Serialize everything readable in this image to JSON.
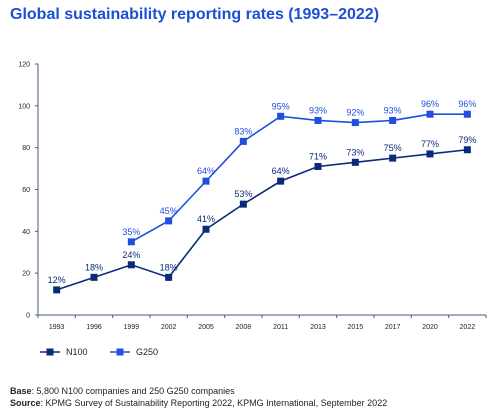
{
  "title": "Global sustainability reporting rates (1993–2022)",
  "chart_data": {
    "type": "line",
    "x": [
      "1993",
      "1996",
      "1999",
      "2002",
      "2005",
      "2008",
      "2011",
      "2013",
      "2015",
      "2017",
      "2020",
      "2022"
    ],
    "ylim": [
      0,
      120
    ],
    "yticks": [
      0,
      20,
      40,
      60,
      80,
      100,
      120
    ],
    "grid": false,
    "legend_position": "bottom-left",
    "series": [
      {
        "name": "N100",
        "color": "#0a2a7a",
        "values": [
          12,
          18,
          24,
          18,
          41,
          53,
          64,
          71,
          73,
          75,
          77,
          79
        ],
        "labels": [
          "12%",
          "18%",
          "24%",
          "18%",
          "41%",
          "53%",
          "64%",
          "71%",
          "73%",
          "75%",
          "77%",
          "79%"
        ]
      },
      {
        "name": "G250",
        "color": "#1e4fe0",
        "values": [
          null,
          null,
          35,
          45,
          64,
          83,
          95,
          93,
          92,
          93,
          96,
          96
        ],
        "labels": [
          "",
          "",
          "35%",
          "45%",
          "64%",
          "83%",
          "95%",
          "93%",
          "92%",
          "93%",
          "96%",
          "96%"
        ]
      }
    ]
  },
  "footer": {
    "base_label": "Base",
    "base_text": ": 5,800 N100 companies and 250 G250 companies",
    "source_label": "Source",
    "source_text": ": KPMG Survey of Sustainability Reporting 2022, KPMG International, September 2022"
  }
}
